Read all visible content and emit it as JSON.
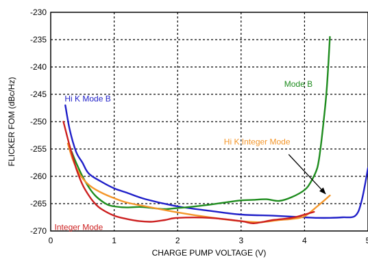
{
  "chart_data": {
    "type": "line",
    "title": "",
    "xlabel": "CHARGE PUMP VOLTAGE (V)",
    "ylabel": "FLICKER FOM (dBc/Hz)",
    "xlim": [
      0,
      5
    ],
    "ylim": [
      -270,
      -230
    ],
    "x_ticks": [
      0,
      1,
      2,
      3,
      4,
      5
    ],
    "y_ticks": [
      -230,
      -235,
      -240,
      -245,
      -250,
      -255,
      -260,
      -265,
      -270
    ],
    "grid": true,
    "legend": "none",
    "series": [
      {
        "name": "Hi K Mode B",
        "color": "#1f1fc8",
        "x": [
          0.23,
          0.3,
          0.4,
          0.5,
          0.6,
          0.8,
          1.0,
          1.2,
          1.5,
          2.0,
          2.5,
          3.0,
          3.5,
          4.0,
          4.2,
          4.4,
          4.6,
          4.8,
          4.9,
          5.0
        ],
        "y": [
          -247,
          -251.5,
          -255.5,
          -257.5,
          -259.5,
          -261,
          -262.2,
          -263,
          -264.2,
          -265.5,
          -266.3,
          -267,
          -267.2,
          -267.5,
          -267.6,
          -267.6,
          -267.5,
          -267.2,
          -264.5,
          -258.5
        ]
      },
      {
        "name": "Mode B",
        "color": "#1e8c1e",
        "x": [
          0.33,
          0.4,
          0.5,
          0.6,
          0.7,
          0.8,
          0.9,
          1.0,
          1.2,
          1.4,
          1.6,
          1.8,
          2.0,
          2.2,
          2.5,
          2.8,
          3.0,
          3.2,
          3.4,
          3.6,
          3.8,
          4.0,
          4.1,
          4.2,
          4.25,
          4.3,
          4.35,
          4.4
        ],
        "y": [
          -255.5,
          -257.5,
          -260,
          -262,
          -263.5,
          -264.5,
          -265.2,
          -265.5,
          -265.7,
          -265.6,
          -265.8,
          -266,
          -265.8,
          -265.6,
          -265.2,
          -264.7,
          -264.4,
          -264.3,
          -264.2,
          -264.5,
          -263.8,
          -262.5,
          -261,
          -258.5,
          -255,
          -250,
          -244,
          -234.5
        ]
      },
      {
        "name": "Hi K Integer Mode",
        "color": "#f4962a",
        "x": [
          0.27,
          0.35,
          0.45,
          0.55,
          0.65,
          0.8,
          1.0,
          1.2,
          1.5,
          2.0,
          2.5,
          3.0,
          3.3,
          3.6,
          3.8,
          4.0,
          4.2,
          4.4
        ],
        "y": [
          -254,
          -257,
          -259.5,
          -261,
          -262,
          -263,
          -264,
          -264.8,
          -265.5,
          -266.6,
          -267.5,
          -268.2,
          -268.4,
          -268,
          -267.8,
          -267.3,
          -265.5,
          -263.5
        ]
      },
      {
        "name": "Integer Mode",
        "color": "#cc1f1f",
        "x": [
          0.2,
          0.3,
          0.4,
          0.5,
          0.6,
          0.7,
          0.8,
          1.0,
          1.2,
          1.4,
          1.6,
          1.8,
          2.0,
          2.5,
          3.0,
          3.2,
          3.5,
          3.8,
          4.0,
          4.15
        ],
        "y": [
          -250,
          -254.5,
          -258.5,
          -261.5,
          -263.5,
          -265,
          -266,
          -267.2,
          -267.8,
          -268.2,
          -268.3,
          -268,
          -267.6,
          -267.6,
          -268.2,
          -268.6,
          -268,
          -267.6,
          -267,
          -266.5
        ]
      }
    ],
    "annotations": [
      {
        "text": "Hi K Mode B",
        "series": "Hi K Mode B",
        "color": "#1f1fc8",
        "x": 0.22,
        "y": -246.3,
        "anchor": "start"
      },
      {
        "text": "Mode B",
        "series": "Mode B",
        "color": "#1e8c1e",
        "x": 3.68,
        "y": -243.6,
        "anchor": "start"
      },
      {
        "text": "Hi K Integer Mode",
        "series": "Hi K Integer Mode",
        "color": "#f4962a",
        "x": 2.73,
        "y": -254.2,
        "anchor": "start"
      },
      {
        "text": "Integer Mode",
        "series": "Integer Mode",
        "color": "#cc1f1f",
        "x": 0.06,
        "y": -269.8,
        "anchor": "start"
      }
    ],
    "arrow": {
      "from": [
        3.75,
        -256
      ],
      "to": [
        4.33,
        -263.2
      ],
      "color": "#000000"
    }
  }
}
